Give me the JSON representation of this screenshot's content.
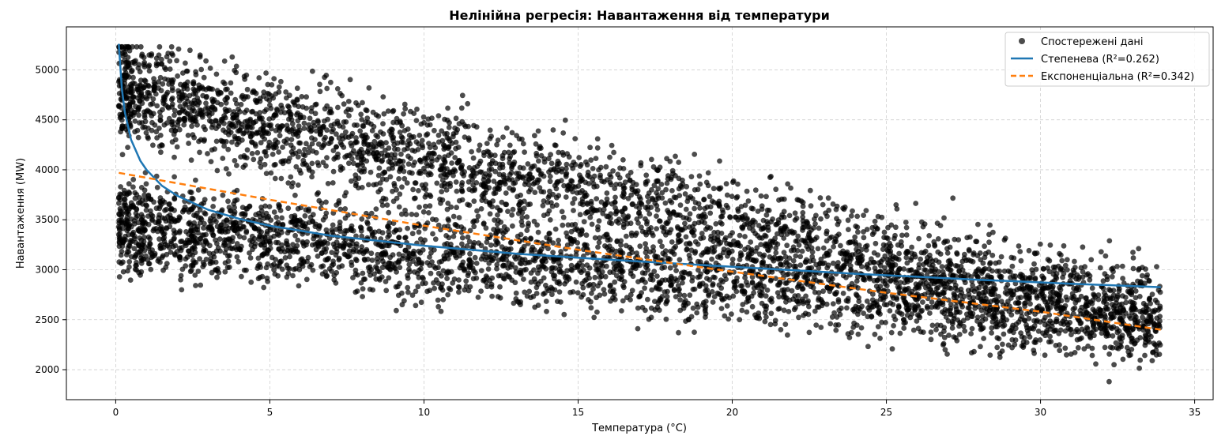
{
  "chart_data": {
    "type": "scatter",
    "title": "Нелінійна регресія: Навантаження від температури",
    "xlabel": "Температура (°C)",
    "ylabel": "Навантаження (MW)",
    "xlim": [
      -1.6,
      35.6
    ],
    "ylim": [
      1700,
      5430
    ],
    "x_ticks": [
      0,
      5,
      10,
      15,
      20,
      25,
      30,
      35
    ],
    "y_ticks": [
      2000,
      2500,
      3000,
      3500,
      4000,
      4500,
      5000
    ],
    "grid": true,
    "legend_position": "top-right",
    "scatter": {
      "name": "Спостережені дані",
      "color": "#000000",
      "point_count_estimate": 6000,
      "upper_band": {
        "x": [
          0,
          35
        ],
        "center_y": [
          4800,
          2450
        ],
        "spread": 420
      },
      "lower_band": {
        "x": [
          0,
          35
        ],
        "center_y": [
          3450,
          2450
        ],
        "spread": 380
      }
    },
    "fits": [
      {
        "name": "Степенева (R²=0.262)",
        "color": "#1f77b4",
        "style": "solid",
        "x": [
          0.1,
          0.2,
          0.3,
          0.5,
          0.8,
          1.0,
          1.5,
          2.0,
          3.0,
          4.0,
          5.0,
          7.0,
          10.0,
          13.0,
          16.0,
          20.0,
          24.0,
          28.0,
          31.0,
          33.9
        ],
        "y": [
          5260,
          4810,
          4570,
          4300,
          4090,
          4000,
          3840,
          3740,
          3600,
          3510,
          3440,
          3340,
          3240,
          3160,
          3100,
          3030,
          2960,
          2900,
          2860,
          2825
        ]
      },
      {
        "name": "Експоненціальна (R²=0.342)",
        "color": "#ff7f0e",
        "style": "dashed",
        "x": [
          0.1,
          5,
          10,
          15,
          20,
          25,
          30,
          33.9
        ],
        "y": [
          3970,
          3700,
          3440,
          3200,
          2980,
          2770,
          2580,
          2400
        ]
      }
    ]
  }
}
